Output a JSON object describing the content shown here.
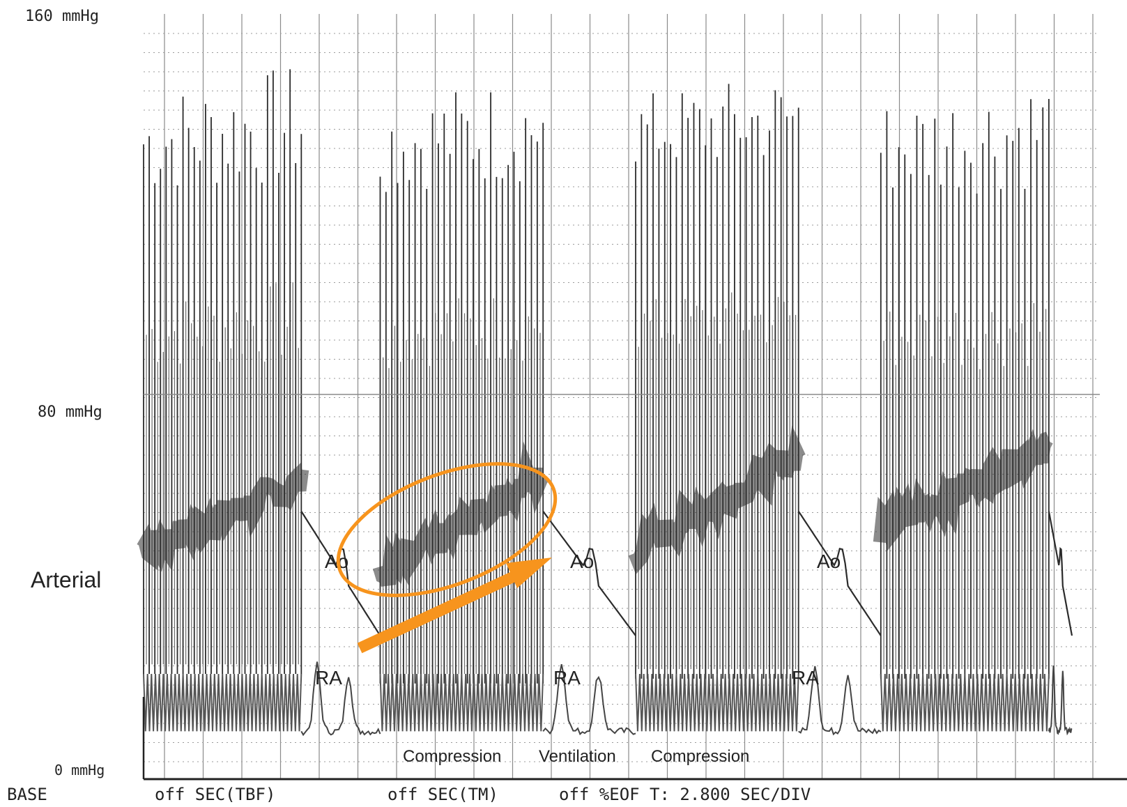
{
  "chart_data": {
    "type": "line",
    "axes": {
      "y_unit": "mmHg",
      "y_range": [
        0,
        160
      ],
      "y_tick_labels": [
        "160 mmHg",
        "80 mmHg",
        "0 mmHg"
      ],
      "grid": true
    },
    "channel_label": "Arterial",
    "trace_labels": {
      "ao": [
        "Ao",
        "Ao",
        "Ao"
      ],
      "ra": [
        "RA",
        "RA",
        "RA"
      ]
    },
    "phase_labels": [
      "Compression",
      "Ventilation",
      "Compression"
    ],
    "footer": {
      "base": "BASE",
      "field1": "off SEC(TBF)",
      "field2": "off SEC(TM)",
      "field3": "off %EOF T: 2.800 SEC/DIV"
    },
    "series": [
      {
        "name": "Ao",
        "description_free": true,
        "blocks": [
          {
            "t_start": 0.0,
            "t_end": 9.2,
            "peak_range": [
              110,
              150
            ],
            "floor": 28,
            "mean_start": 48,
            "mean_end": 62
          },
          {
            "t_start": 13.8,
            "t_end": 23.3,
            "peak_range": [
              112,
              148
            ],
            "floor": 26,
            "mean_start": 42,
            "mean_end": 64
          },
          {
            "t_start": 28.7,
            "t_end": 38.2,
            "peak_range": [
              118,
              148
            ],
            "floor": 27,
            "mean_start": 48,
            "mean_end": 68
          },
          {
            "t_start": 43.0,
            "t_end": 52.8,
            "peak_range": [
              110,
              148
            ],
            "floor": 27,
            "mean_start": 52,
            "mean_end": 70
          }
        ],
        "decay": {
          "start": 56,
          "end": 30,
          "bump": 38
        }
      },
      {
        "name": "RA",
        "baseline": 10,
        "bumps": [
          24,
          22
        ]
      }
    ],
    "annotation": {
      "ellipse_color": "#f7941d",
      "arrow_color": "#f7941d"
    },
    "colors": {
      "trace": "#2b2b2b",
      "grid_dotted": "#9a9a9a",
      "grid_vertical": "#8a8a8a",
      "accent": "#f7941d"
    }
  }
}
